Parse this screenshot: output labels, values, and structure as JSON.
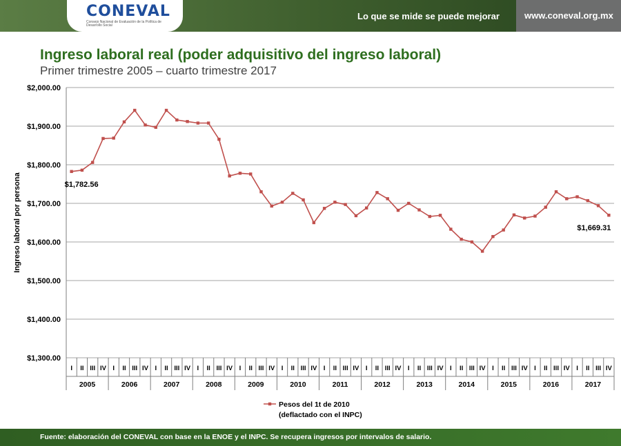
{
  "header": {
    "logo_text": "CONEVAL",
    "logo_subtitle": "Consejo Nacional de Evaluación de la Política de Desarrollo Social",
    "tagline": "Lo que se mide se puede mejorar",
    "url": "www.coneval.org.mx"
  },
  "title": "Ingreso laboral real (poder adquisitivo del ingreso laboral)",
  "subtitle": "Primer trimestre 2005 – cuarto trimestre 2017",
  "footer": "Fuente: elaboración del CONEVAL con base en la ENOE y el INPC. Se recupera ingresos por intervalos de salario.",
  "chart_data": {
    "type": "line",
    "ylabel": "Ingreso laboral por persona",
    "ylim": [
      1300,
      2000
    ],
    "ytick_values": [
      1300,
      1400,
      1500,
      1600,
      1700,
      1800,
      1900,
      2000
    ],
    "ytick_labels": [
      "$1,300.00",
      "$1,400.00",
      "$1,500.00",
      "$1,600.00",
      "$1,700.00",
      "$1,800.00",
      "$1,900.00",
      "$2,000.00"
    ],
    "quarter_labels": [
      "I",
      "II",
      "III",
      "IV"
    ],
    "years": [
      "2005",
      "2006",
      "2007",
      "2008",
      "2009",
      "2010",
      "2011",
      "2012",
      "2013",
      "2014",
      "2015",
      "2016",
      "2017"
    ],
    "grid": "horizontal",
    "series": [
      {
        "name": "Pesos del 1t de 2010",
        "color": "#c0504d",
        "values": [
          1782.56,
          1786,
          1806,
          1868,
          1869,
          1911,
          1941,
          1903,
          1897,
          1941,
          1916,
          1912,
          1908,
          1908,
          1866,
          1771,
          1778,
          1776,
          1730,
          1693,
          1703,
          1726,
          1709,
          1650,
          1687,
          1703,
          1697,
          1668,
          1688,
          1728,
          1712,
          1682,
          1700,
          1683,
          1666,
          1669,
          1633,
          1607,
          1600,
          1576,
          1614,
          1631,
          1670,
          1662,
          1667,
          1690,
          1730,
          1712,
          1717,
          1707,
          1694,
          1669.31
        ]
      }
    ],
    "annotations": [
      {
        "index": 0,
        "text": "$1,782.56"
      },
      {
        "index": 51,
        "text": "$1,669.31"
      }
    ],
    "legend": {
      "position": "bottom-center",
      "line1": "Pesos del 1t de 2010",
      "line2": "(deflactado con el INPC)"
    }
  }
}
